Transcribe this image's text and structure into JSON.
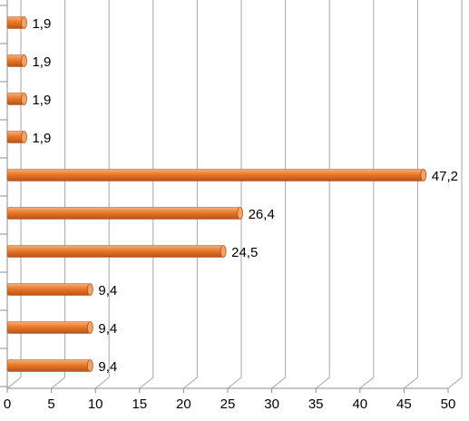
{
  "chart_data": {
    "type": "bar",
    "orientation": "horizontal",
    "style": "3d-cylinder",
    "categories": [
      "",
      "",
      "",
      "",
      "",
      "",
      "",
      "",
      "",
      ""
    ],
    "values": [
      1.9,
      1.9,
      1.9,
      1.9,
      47.2,
      26.4,
      24.5,
      9.4,
      9.4,
      9.4
    ],
    "data_labels": [
      "1,9",
      "1,9",
      "1,9",
      "1,9",
      "47,2",
      "26,4",
      "24,5",
      "9,4",
      "9,4",
      "9,4"
    ],
    "xlim": [
      0,
      50
    ],
    "x_ticks": [
      0,
      5,
      10,
      15,
      20,
      25,
      30,
      35,
      40,
      45,
      50
    ],
    "x_tick_labels": [
      "0",
      "5",
      "10",
      "15",
      "20",
      "25",
      "30",
      "35",
      "40",
      "45",
      "50"
    ],
    "title": "",
    "xlabel": "",
    "ylabel": "",
    "grid": "vertical",
    "legend": "none",
    "colors": {
      "bar": "#e8792a",
      "bar_light": "#f6b07a",
      "bar_dark": "#b4531a",
      "bar_end": "#f3a466",
      "grid": "#a6a6a6",
      "axis": "#8c8c8c"
    }
  }
}
